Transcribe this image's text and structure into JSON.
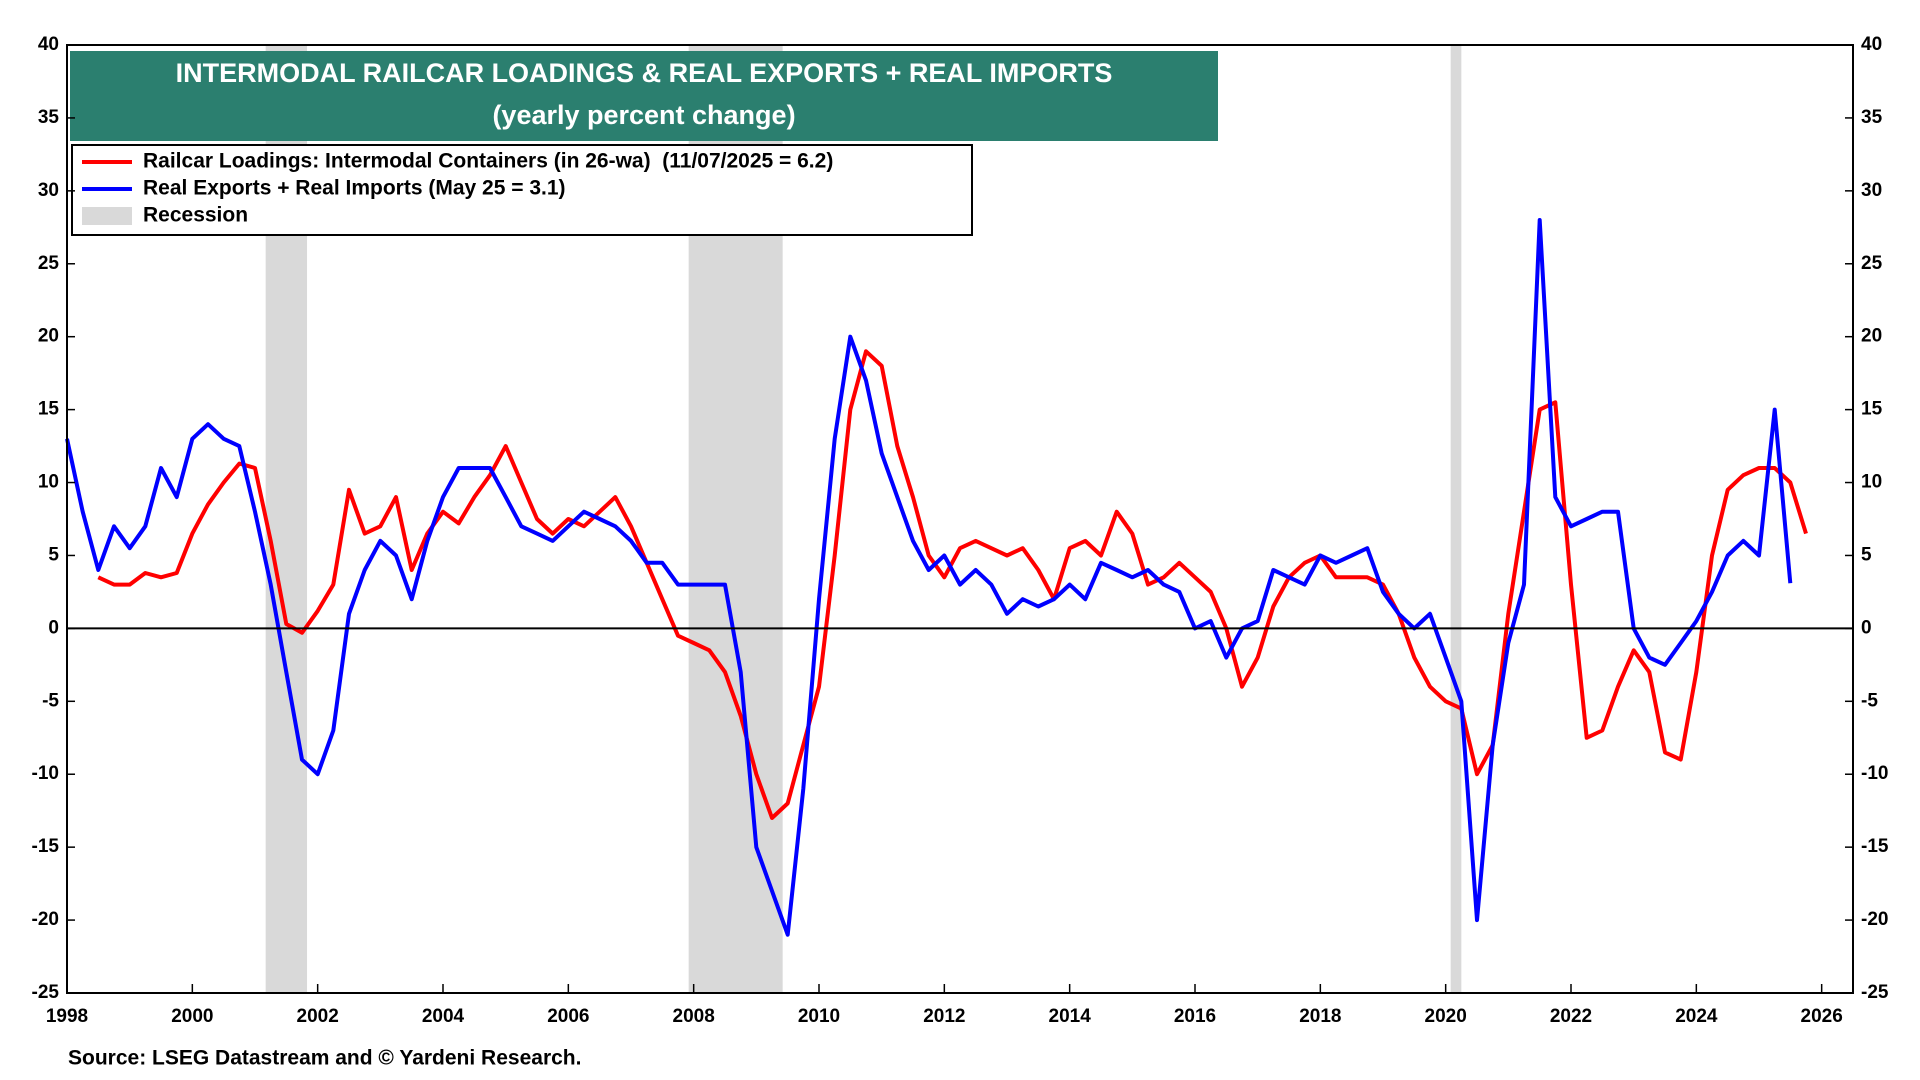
{
  "chart_data": {
    "type": "line",
    "title": "INTERMODAL RAILCAR LOADINGS & REAL EXPORTS + REAL IMPORTS",
    "subtitle": "(yearly percent change)",
    "source": "Source: LSEG Datastream and © Yardeni Research.",
    "recession_label": "Recession",
    "recession_color": "#d9d9d9",
    "recessions": [
      [
        2001.17,
        2001.83
      ],
      [
        2007.92,
        2009.42
      ],
      [
        2020.08,
        2020.25
      ]
    ],
    "x": [
      1998,
      1998.25,
      1998.5,
      1998.75,
      1999,
      1999.25,
      1999.5,
      1999.75,
      2000,
      2000.25,
      2000.5,
      2000.75,
      2001,
      2001.25,
      2001.5,
      2001.75,
      2002,
      2002.25,
      2002.5,
      2002.75,
      2003,
      2003.25,
      2003.5,
      2003.75,
      2004,
      2004.25,
      2004.5,
      2004.75,
      2005,
      2005.25,
      2005.5,
      2005.75,
      2006,
      2006.25,
      2006.5,
      2006.75,
      2007,
      2007.25,
      2007.5,
      2007.75,
      2008,
      2008.25,
      2008.5,
      2008.75,
      2009,
      2009.25,
      2009.5,
      2009.75,
      2010,
      2010.25,
      2010.5,
      2010.75,
      2011,
      2011.25,
      2011.5,
      2011.75,
      2012,
      2012.25,
      2012.5,
      2012.75,
      2013,
      2013.25,
      2013.5,
      2013.75,
      2014,
      2014.25,
      2014.5,
      2014.75,
      2015,
      2015.25,
      2015.5,
      2015.75,
      2016,
      2016.25,
      2016.5,
      2016.75,
      2017,
      2017.25,
      2017.5,
      2017.75,
      2018,
      2018.25,
      2018.5,
      2018.75,
      2019,
      2019.25,
      2019.5,
      2019.75,
      2020,
      2020.25,
      2020.5,
      2020.75,
      2021,
      2021.25,
      2021.5,
      2021.75,
      2022,
      2022.25,
      2022.5,
      2022.75,
      2023,
      2023.25,
      2023.5,
      2023.75,
      2024,
      2024.25,
      2024.5,
      2024.75,
      2025,
      2025.25,
      2025.5,
      2025.75
    ],
    "series": [
      {
        "name": "Railcar Loadings: Intermodal Containers (in 26-wa)  (11/07/2025 = 6.2)",
        "color": "#ff0000",
        "values": [
          null,
          null,
          3.5,
          3.0,
          3.0,
          3.8,
          3.5,
          3.8,
          6.5,
          8.5,
          10,
          11.3,
          11,
          6,
          0.3,
          -0.3,
          1.2,
          3,
          9.5,
          6.5,
          7,
          9,
          4,
          6.5,
          8,
          7.2,
          9,
          10.5,
          12.5,
          10,
          7.5,
          6.5,
          7.5,
          7,
          8,
          9,
          7,
          4.5,
          2,
          -0.5,
          -1,
          -1.5,
          -3,
          -6,
          -10,
          -13,
          -12,
          -8,
          -4,
          5,
          15,
          19,
          18,
          12.5,
          9,
          5,
          3.5,
          5.5,
          6,
          5.5,
          5,
          5.5,
          4,
          2,
          5.5,
          6,
          5,
          8,
          6.5,
          3,
          3.5,
          4.5,
          3.5,
          2.5,
          0,
          -4,
          -2,
          1.5,
          3.5,
          4.5,
          5,
          3.5,
          3.5,
          3.5,
          3,
          1,
          -2,
          -4,
          -5,
          -5.5,
          -10,
          -8,
          1,
          8,
          15,
          15.5,
          3,
          -7.5,
          -7,
          -4,
          -1.5,
          -3,
          -8.5,
          -9,
          -3,
          5,
          9.5,
          10.5,
          11,
          11,
          10,
          6.5
        ]
      },
      {
        "name": "Real Exports + Real Imports (May 25 = 3.1)",
        "color": "#0000ff",
        "values": [
          13,
          8,
          4,
          7,
          5.5,
          7,
          11,
          9,
          13,
          14,
          13,
          12.5,
          8,
          3,
          -3,
          -9,
          -10,
          -7,
          1,
          4,
          6,
          5,
          2,
          6,
          9,
          11,
          11,
          11,
          9,
          7,
          6.5,
          6,
          7,
          8,
          7.5,
          7,
          6,
          4.5,
          4.5,
          3,
          3,
          3,
          3,
          -3,
          -15,
          -18,
          -21,
          -11,
          2,
          13,
          20,
          17,
          12,
          9,
          6,
          4,
          5,
          3,
          4,
          3,
          1,
          2,
          1.5,
          2,
          3,
          2,
          4.5,
          4,
          3.5,
          4,
          3,
          2.5,
          0,
          0.5,
          -2,
          0,
          0.5,
          4,
          3.5,
          3,
          5,
          4.5,
          5,
          5.5,
          2.5,
          1,
          0,
          1,
          -2,
          -5,
          -20,
          -8,
          -1,
          3,
          28,
          9,
          7,
          7.5,
          8,
          8,
          0,
          -2,
          -2.5,
          -1,
          0.5,
          2.5,
          5,
          6,
          5,
          15,
          3.1,
          null
        ]
      }
    ],
    "xlim": [
      1998,
      2026.5
    ],
    "xticks": [
      1998,
      2000,
      2002,
      2004,
      2006,
      2008,
      2010,
      2012,
      2014,
      2016,
      2018,
      2020,
      2022,
      2024,
      2026
    ],
    "ylim": [
      -25,
      40
    ],
    "yticks": [
      -25,
      -20,
      -15,
      -10,
      -5,
      0,
      5,
      10,
      15,
      20,
      25,
      30,
      35,
      40
    ],
    "title_color": "#2b7f6f"
  }
}
